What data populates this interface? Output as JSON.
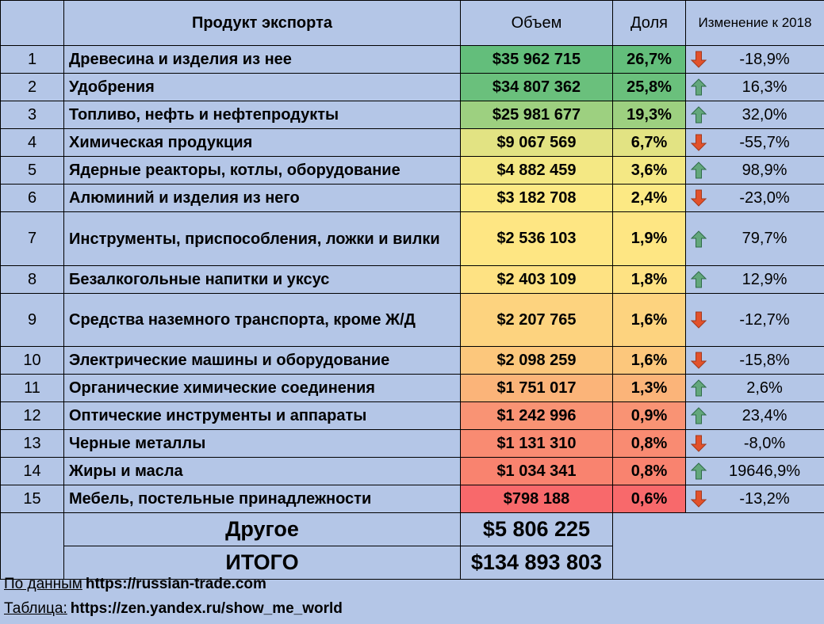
{
  "header": {
    "num": "",
    "product": "Продукт экспорта",
    "volume": "Объем",
    "share": "Доля",
    "change": "Изменение к 2018"
  },
  "rows": [
    {
      "num": "1",
      "product": "Древесина и изделия из нее",
      "volume": "$35 962 715",
      "share": "26,7%",
      "change": "-18,9%",
      "color": "#63be7b"
    },
    {
      "num": "2",
      "product": "Удобрения",
      "volume": "$34 807 362",
      "share": "25,8%",
      "change": "16,3%",
      "color": "#6ac07c"
    },
    {
      "num": "3",
      "product": "Топливо, нефть и нефтепродукты",
      "volume": "$25 981 677",
      "share": "19,3%",
      "change": "32,0%",
      "color": "#9dd080"
    },
    {
      "num": "4",
      "product": "Химическая продукция",
      "volume": "$9 067 569",
      "share": "6,7%",
      "change": "-55,7%",
      "color": "#e2e383"
    },
    {
      "num": "5",
      "product": "Ядерные реакторы, котлы, оборудование",
      "volume": "$4 882 459",
      "share": "3,6%",
      "change": "98,9%",
      "color": "#f4e884"
    },
    {
      "num": "6",
      "product": "Алюминий и изделия из него",
      "volume": "$3 182 708",
      "share": "2,4%",
      "change": "-23,0%",
      "color": "#fce984"
    },
    {
      "num": "7",
      "product": "Инструменты, приспособления, ложки и вилки",
      "volume": "$2 536 103",
      "share": "1,9%",
      "change": "79,7%",
      "color": "#fee683"
    },
    {
      "num": "8",
      "product": "Безалкогольные напитки и уксус",
      "volume": "$2 403 109",
      "share": "1,8%",
      "change": "12,9%",
      "color": "#fee283"
    },
    {
      "num": "9",
      "product": "Средства наземного транспорта, кроме Ж/Д",
      "volume": "$2 207 765",
      "share": "1,6%",
      "change": "-12,7%",
      "color": "#fdd37f"
    },
    {
      "num": "10",
      "product": "Электрические машины и оборудование",
      "volume": "$2 098 259",
      "share": "1,6%",
      "change": "-15,8%",
      "color": "#fcc77c"
    },
    {
      "num": "11",
      "product": "Органические химические соединения",
      "volume": "$1 751 017",
      "share": "1,3%",
      "change": "2,6%",
      "color": "#fbb479"
    },
    {
      "num": "12",
      "product": "Оптические инструменты и аппараты",
      "volume": "$1 242 996",
      "share": "0,9%",
      "change": "23,4%",
      "color": "#f99374"
    },
    {
      "num": "13",
      "product": "Черные металлы",
      "volume": "$1 131 310",
      "share": "0,8%",
      "change": "-8,0%",
      "color": "#f98b72"
    },
    {
      "num": "14",
      "product": "Жиры и масла",
      "volume": "$1 034 341",
      "share": "0,8%",
      "change": "19646,9%",
      "color": "#f9836f"
    },
    {
      "num": "15",
      "product": "Мебель, постельные принадлежности",
      "volume": "$798 188",
      "share": "0,6%",
      "change": "-13,2%",
      "color": "#f8696b"
    }
  ],
  "other": {
    "label": "Другое",
    "volume": "$5 806 225"
  },
  "total": {
    "label": "ИТОГО",
    "volume": "$134 893 803"
  },
  "footer": [
    {
      "prefix": "По данным",
      "link": "https://russian-trade.com"
    },
    {
      "prefix": "Таблица:",
      "link": "https://zen.yandex.ru/show_me_world"
    }
  ]
}
